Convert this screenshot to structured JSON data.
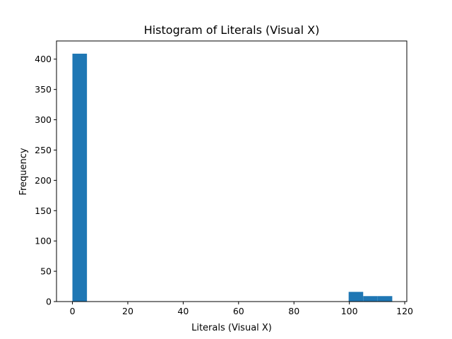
{
  "chart_data": {
    "type": "bar",
    "title": "Histogram of Literals (Visual X)",
    "xlabel": "Literals (Visual X)",
    "ylabel": "Frequency",
    "xlim": [
      -5.75,
      120.75
    ],
    "ylim": [
      0,
      430
    ],
    "xticks": [
      0,
      20,
      40,
      60,
      80,
      100,
      120
    ],
    "yticks": [
      0,
      50,
      100,
      150,
      200,
      250,
      300,
      350,
      400
    ],
    "grid": false,
    "bar_color": "#1f77b4",
    "bins": [
      {
        "x0": 0,
        "x1": 5.25,
        "count": 409
      },
      {
        "x0": 99.75,
        "x1": 105,
        "count": 16
      },
      {
        "x0": 105,
        "x1": 110.25,
        "count": 9
      },
      {
        "x0": 110.25,
        "x1": 115.5,
        "count": 9
      }
    ]
  }
}
